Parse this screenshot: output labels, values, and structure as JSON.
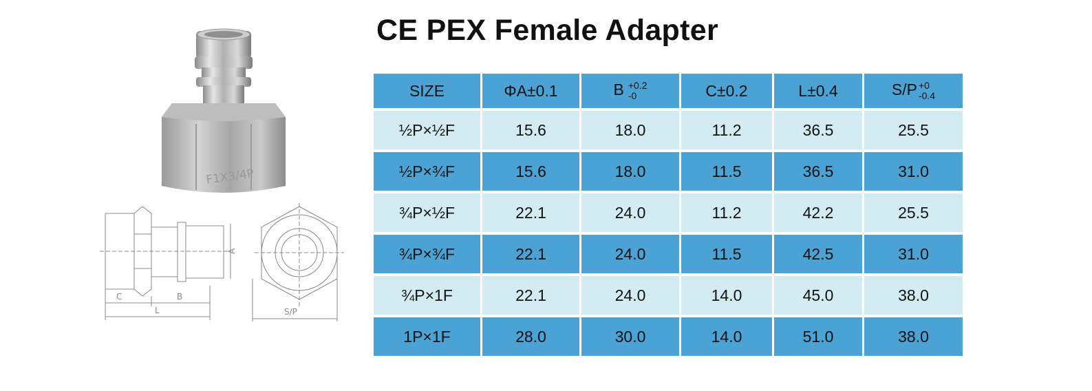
{
  "title": "CE PEX Female Adapter",
  "product_marking": "F1X3/4P",
  "drawing_labels": {
    "a": "A",
    "c": "C",
    "b": "B",
    "l": "L",
    "sp": "S/P"
  },
  "table": {
    "headers": {
      "size": "SIZE",
      "a": "ΦA±0.1",
      "b": "B",
      "b_tol_upper": "+0.2",
      "b_tol_lower": "-0",
      "c": "C±0.2",
      "l": "L±0.4",
      "sp": "S/P",
      "sp_tol_upper": "+0",
      "sp_tol_lower": "-0.4"
    },
    "rows": [
      {
        "size": "½P×½F",
        "a": "15.6",
        "b": "18.0",
        "c": "11.2",
        "l": "36.5",
        "sp": "25.5"
      },
      {
        "size": "½P×¾F",
        "a": "15.6",
        "b": "18.0",
        "c": "11.5",
        "l": "36.5",
        "sp": "31.0"
      },
      {
        "size": "¾P×½F",
        "a": "22.1",
        "b": "24.0",
        "c": "11.2",
        "l": "42.2",
        "sp": "25.5"
      },
      {
        "size": "¾P×¾F",
        "a": "22.1",
        "b": "24.0",
        "c": "11.5",
        "l": "42.5",
        "sp": "31.0"
      },
      {
        "size": "¾P×1F",
        "a": "22.1",
        "b": "24.0",
        "c": "14.0",
        "l": "45.0",
        "sp": "38.0"
      },
      {
        "size": "1P×1F",
        "a": "28.0",
        "b": "30.0",
        "c": "14.0",
        "l": "51.0",
        "sp": "38.0"
      }
    ]
  },
  "colors": {
    "header_bg": "#4aa3d4",
    "row_light": "#d3ecf4",
    "row_dark": "#4aa3d4"
  }
}
